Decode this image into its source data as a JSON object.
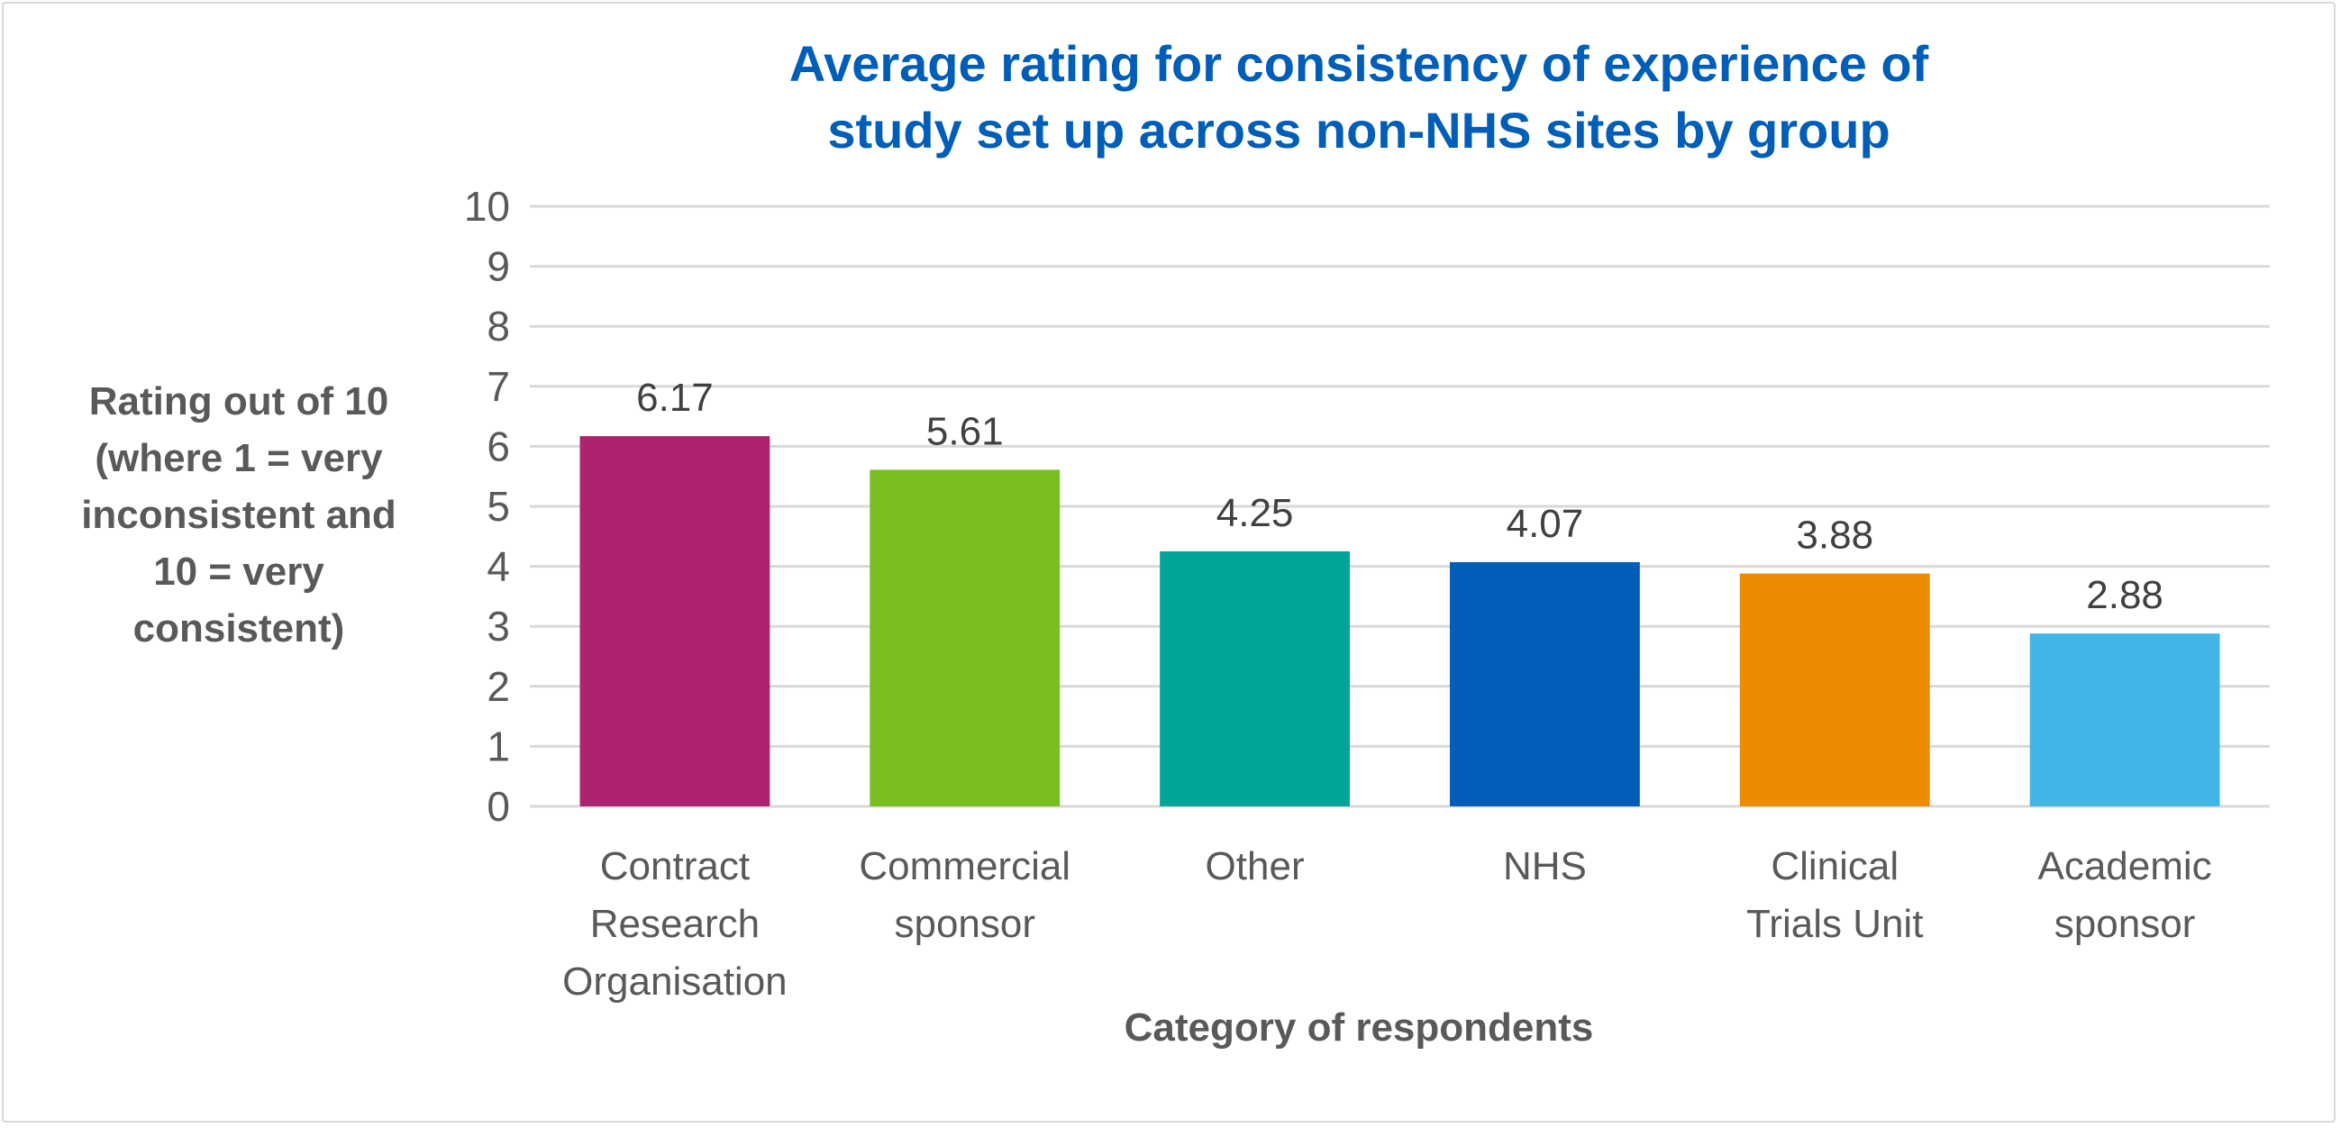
{
  "chart_data": {
    "type": "bar",
    "title": [
      "Average rating for consistency of experience of",
      "study set up across non-NHS sites by group"
    ],
    "categories": [
      [
        "Contract",
        "Research",
        "Organisation"
      ],
      [
        "Commercial",
        "sponsor"
      ],
      [
        "Other"
      ],
      [
        "NHS"
      ],
      [
        "Clinical",
        "Trials Unit"
      ],
      [
        "Academic",
        "sponsor"
      ]
    ],
    "values": [
      6.17,
      5.61,
      4.25,
      4.07,
      3.88,
      2.88
    ],
    "data_labels": [
      "6.17",
      "5.61",
      "4.25",
      "4.07",
      "3.88",
      "2.88"
    ],
    "colors": [
      "#AE2370",
      "#78BE20",
      "#00A499",
      "#005EB8",
      "#ED8B00",
      "#41B6E6"
    ],
    "xlabel": "Category of respondents",
    "ylabel": [
      "Rating out of 10",
      "(where 1 = very",
      "inconsistent and",
      "10 = very",
      "consistent)"
    ],
    "ylim": [
      0,
      10
    ],
    "yticks": [
      0,
      1,
      2,
      3,
      4,
      5,
      6,
      7,
      8,
      9,
      10
    ],
    "grid": true,
    "legend": "none"
  }
}
